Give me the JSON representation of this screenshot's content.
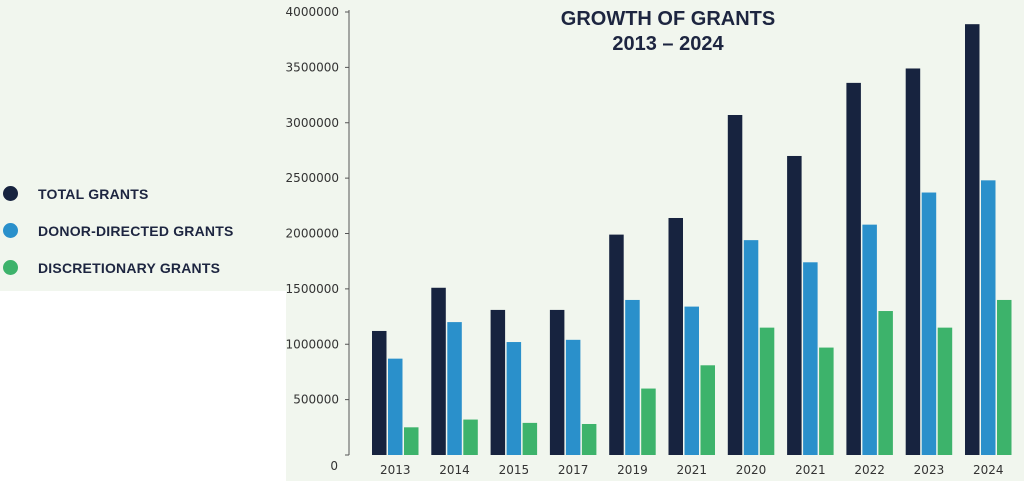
{
  "chart_data": {
    "type": "bar",
    "title_line1": "GROWTH OF GRANTS",
    "title_line2": "2013 – 2024",
    "categories": [
      "2013",
      "2014",
      "2015",
      "2017",
      "2019",
      "2021",
      "2020",
      "2021",
      "2022",
      "2023",
      "2024"
    ],
    "series": [
      {
        "name": "TOTAL GRANTS",
        "color": "#17233f",
        "values": [
          1120000,
          1510000,
          1310000,
          1310000,
          1990000,
          2140000,
          3070000,
          2700000,
          3360000,
          3490000,
          3890000
        ]
      },
      {
        "name": "DONOR-DIRECTED GRANTS",
        "color": "#2a90cb",
        "values": [
          870000,
          1200000,
          1020000,
          1040000,
          1400000,
          1340000,
          1940000,
          1740000,
          2080000,
          2370000,
          2480000
        ]
      },
      {
        "name": "DISCRETIONARY GRANTS",
        "color": "#3db36b",
        "values": [
          250000,
          320000,
          290000,
          280000,
          600000,
          810000,
          1150000,
          970000,
          1300000,
          1150000,
          1400000
        ]
      }
    ],
    "y_ticks": [
      "0",
      "500000",
      "1000000",
      "1500000",
      "2000000",
      "2500000",
      "3000000",
      "3500000",
      "4000000"
    ],
    "ylim": [
      0,
      4000000
    ],
    "xlabel": "",
    "ylabel": "",
    "legend_position": "left"
  }
}
